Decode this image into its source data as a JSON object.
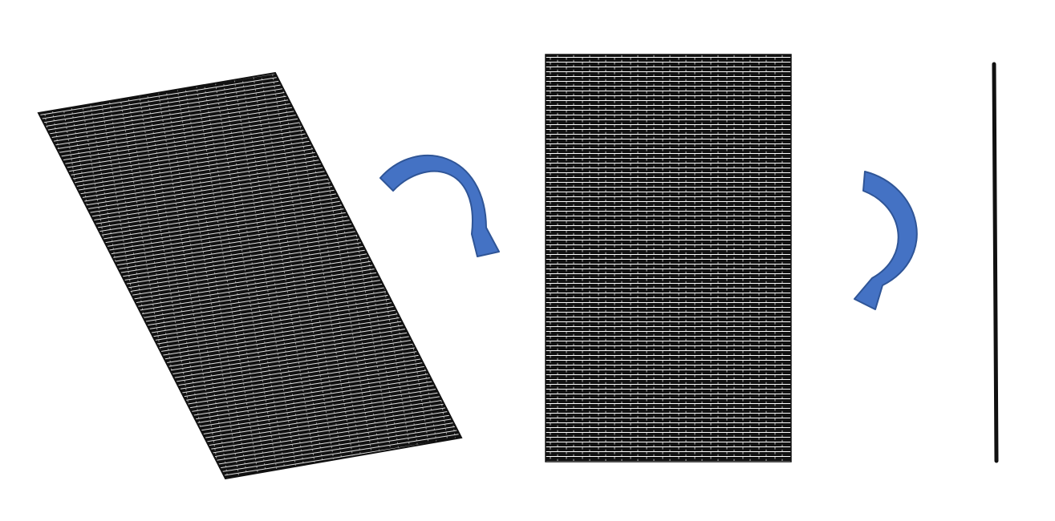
{
  "diagram": {
    "stages": [
      {
        "name": "skewed-point-grid"
      },
      {
        "name": "upright-point-grid"
      },
      {
        "name": "collapsed-line"
      }
    ],
    "transitions": [
      {
        "name": "arrow-skewed-to-upright",
        "icon": "curved-arrow-icon"
      },
      {
        "name": "arrow-upright-to-line",
        "icon": "curved-arrow-icon"
      }
    ],
    "colors": {
      "grid": "#111111",
      "line": "#111111",
      "arrow_fill": "#4472C4",
      "arrow_stroke": "#2F5597",
      "background": "#ffffff"
    }
  }
}
